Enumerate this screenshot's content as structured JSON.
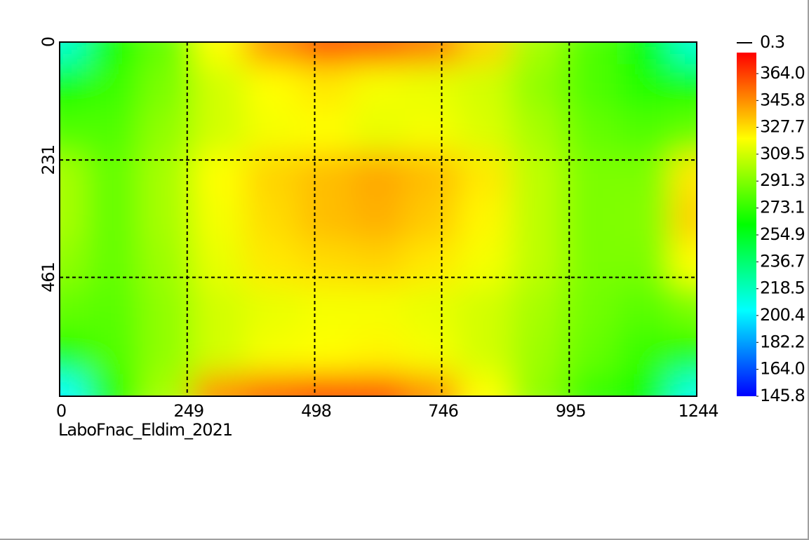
{
  "chart_data": {
    "type": "heatmap",
    "caption": "LaboFnac_Eldim_2021",
    "x": [
      0,
      103.7,
      207.3,
      311,
      414.7,
      518.3,
      622,
      725.7,
      829.3,
      933,
      1036.7,
      1140.3,
      1244
    ],
    "y": [
      0,
      86.75,
      173.5,
      260.25,
      347,
      433.75,
      520.5,
      607.25,
      694
    ],
    "z": [
      [
        215,
        265,
        285,
        320,
        345,
        360,
        358,
        350,
        330,
        300,
        280,
        260,
        215
      ],
      [
        265,
        275,
        290,
        310,
        320,
        325,
        318,
        315,
        310,
        295,
        280,
        270,
        265
      ],
      [
        280,
        280,
        295,
        310,
        318,
        320,
        315,
        318,
        312,
        300,
        285,
        280,
        285
      ],
      [
        300,
        285,
        300,
        320,
        330,
        335,
        340,
        335,
        325,
        305,
        290,
        290,
        325
      ],
      [
        300,
        285,
        300,
        318,
        328,
        335,
        338,
        332,
        322,
        305,
        290,
        292,
        330
      ],
      [
        295,
        285,
        298,
        315,
        325,
        328,
        330,
        325,
        318,
        305,
        290,
        290,
        320
      ],
      [
        285,
        282,
        295,
        310,
        315,
        318,
        318,
        315,
        310,
        300,
        288,
        282,
        290
      ],
      [
        270,
        280,
        295,
        310,
        318,
        320,
        322,
        318,
        310,
        298,
        285,
        275,
        270
      ],
      [
        205,
        270,
        300,
        345,
        355,
        362,
        360,
        345,
        320,
        295,
        275,
        265,
        210
      ]
    ],
    "xlim": [
      0,
      1244
    ],
    "xticks": [
      0,
      249,
      498,
      746,
      995,
      1244
    ],
    "ylim": [
      0,
      694
    ],
    "yticks": [
      0,
      231,
      461
    ],
    "y_reversed": true,
    "grid": true,
    "colorbar_header": "0.3",
    "clim": [
      145.8,
      378.2
    ],
    "cticks": [
      {
        "value": 364,
        "label": "364.0"
      },
      345.8,
      327.7,
      309.5,
      291.3,
      273.1,
      254.9,
      236.7,
      218.5,
      200.4,
      182.2,
      {
        "value": 164,
        "label": "164.0"
      },
      145.8
    ]
  }
}
